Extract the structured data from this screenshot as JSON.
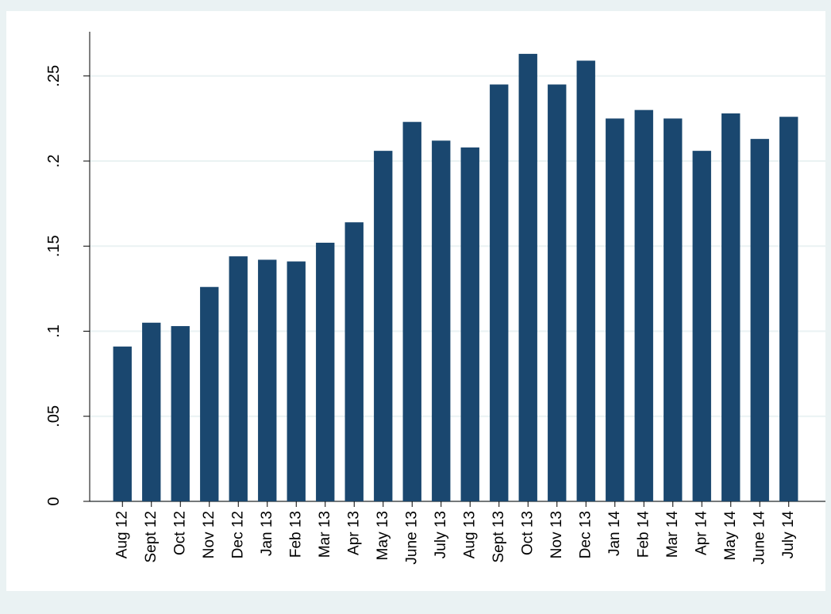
{
  "chart_data": {
    "type": "bar",
    "categories": [
      "Aug 12",
      "Sept 12",
      "Oct 12",
      "Nov 12",
      "Dec 12",
      "Jan 13",
      "Feb 13",
      "Mar 13",
      "Apr 13",
      "May 13",
      "June 13",
      "July 13",
      "Aug 13",
      "Sept 13",
      "Oct 13",
      "Nov 13",
      "Dec 13",
      "Jan 14",
      "Feb 14",
      "Mar 14",
      "Apr 14",
      "May 14",
      "June 14",
      "July 14"
    ],
    "values": [
      0.091,
      0.105,
      0.103,
      0.126,
      0.144,
      0.142,
      0.141,
      0.152,
      0.164,
      0.206,
      0.223,
      0.212,
      0.208,
      0.245,
      0.263,
      0.245,
      0.259,
      0.225,
      0.23,
      0.225,
      0.206,
      0.228,
      0.213,
      0.226
    ],
    "color": "#1a476f",
    "ylim": [
      0,
      0.276
    ],
    "yticks": [
      0,
      {
        "value": 0.05,
        "label": ".05"
      },
      {
        "value": 0.1,
        "label": ".1"
      },
      {
        "value": 0.15,
        "label": ".15"
      },
      {
        "value": 0.2,
        "label": ".2"
      },
      {
        "value": 0.25,
        "label": ".25"
      }
    ],
    "grid": true
  }
}
